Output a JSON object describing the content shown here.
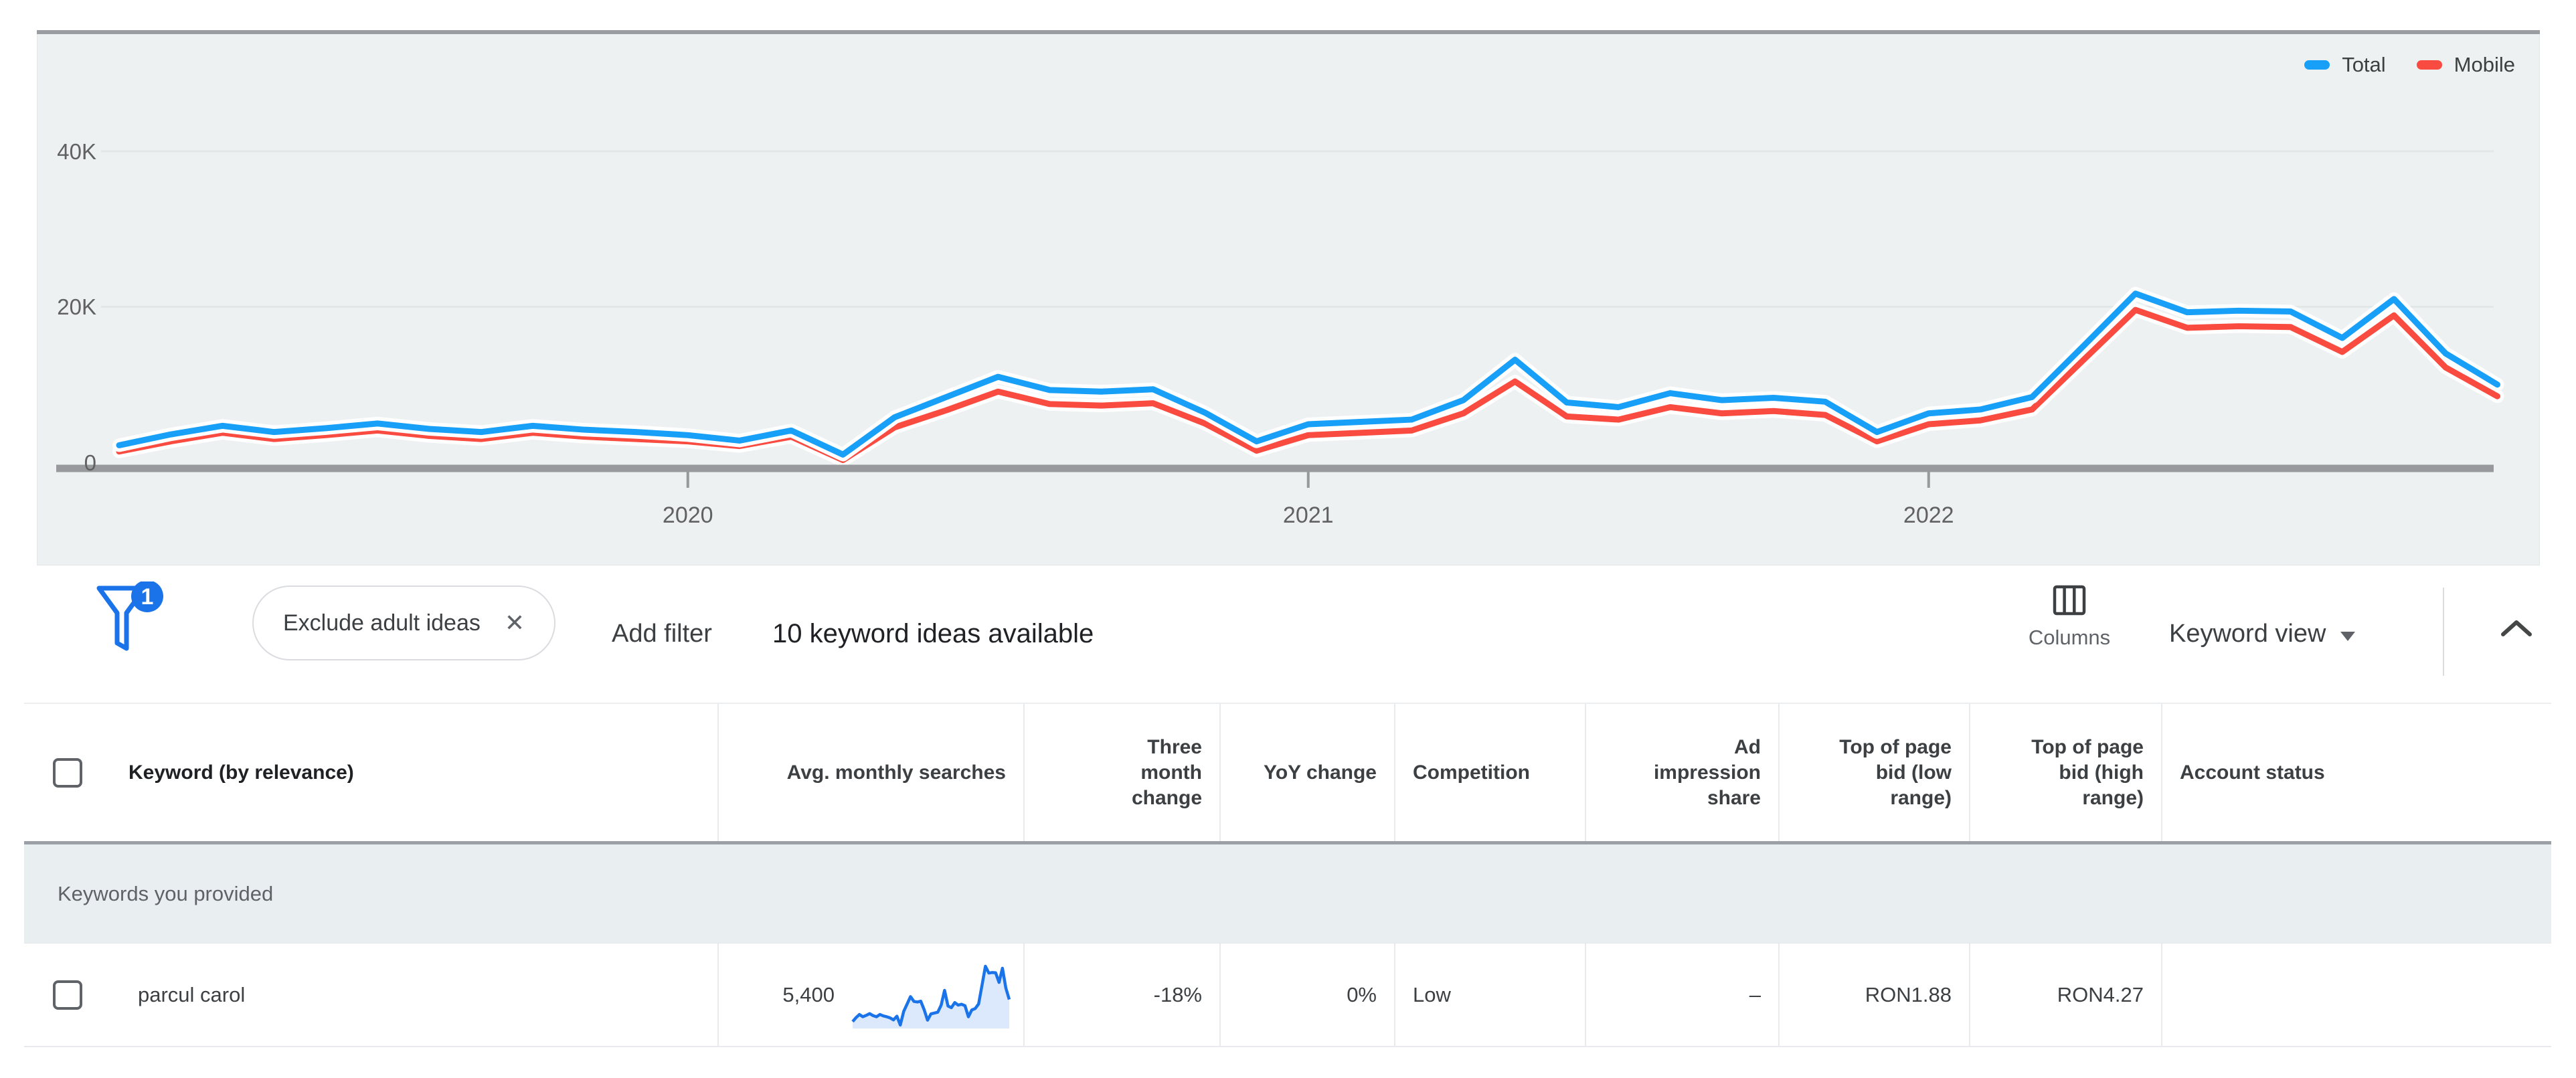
{
  "chart_data": {
    "type": "line",
    "x_unit": "month",
    "x_range_start": "Feb 2019",
    "x_range_end": "Dec 2022",
    "x_axis_tick_labels": [
      "2020",
      "2021",
      "2022"
    ],
    "y_axis_tick_labels": [
      "40K",
      "20K",
      "0"
    ],
    "ylim_k": [
      0,
      45
    ],
    "grid": true,
    "legend_position": "top-right",
    "series": [
      {
        "name": "Total",
        "color": "#18a0f8",
        "values_k": [
          2.2,
          3.6,
          4.7,
          3.9,
          4.4,
          5.0,
          4.3,
          3.9,
          4.7,
          4.2,
          3.9,
          3.5,
          2.8,
          4.1,
          1.0,
          5.8,
          8.4,
          11.0,
          9.3,
          9.1,
          9.4,
          6.4,
          2.7,
          4.9,
          5.2,
          5.5,
          8.0,
          13.2,
          7.7,
          7.1,
          8.9,
          8.0,
          8.3,
          7.8,
          3.9,
          6.3,
          6.8,
          8.4,
          15.0,
          21.7,
          19.3,
          19.5,
          19.4,
          16.0,
          21.0,
          14.0,
          10.0
        ]
      },
      {
        "name": "Mobile",
        "color": "#f94b3f",
        "values_k": [
          1.4,
          2.7,
          3.8,
          3.0,
          3.5,
          4.1,
          3.4,
          3.0,
          3.8,
          3.3,
          3.0,
          2.7,
          2.1,
          3.3,
          0.3,
          4.5,
          6.7,
          9.1,
          7.5,
          7.3,
          7.6,
          5.0,
          1.5,
          3.5,
          3.8,
          4.1,
          6.3,
          10.4,
          5.9,
          5.5,
          7.1,
          6.3,
          6.6,
          6.1,
          2.7,
          4.9,
          5.4,
          6.8,
          13.2,
          19.6,
          17.3,
          17.5,
          17.4,
          14.2,
          18.9,
          12.2,
          8.5
        ]
      }
    ]
  },
  "filter_bar": {
    "filter_icon_badge_count": "1",
    "chip": {
      "label": "Exclude adult ideas",
      "remove_icon": "✕"
    },
    "add_filter_label": "Add filter",
    "results_summary": "10 keyword ideas available",
    "columns_button_label": "Columns",
    "view_dropdown_value": "Keyword view"
  },
  "table": {
    "headers": {
      "keyword": "Keyword (by relevance)",
      "avg_monthly_searches": "Avg. monthly searches",
      "three_month_change": "Three month change",
      "yoy_change": "YoY change",
      "competition": "Competition",
      "ad_impression_share": "Ad impression share",
      "top_of_page_bid_low": "Top of page bid (low range)",
      "top_of_page_bid_high": "Top of page bid (high range)",
      "account_status": "Account status"
    },
    "section_label": "Keywords you provided",
    "rows": [
      {
        "keyword": "parcul carol",
        "avg_monthly_searches": "5,400",
        "three_month_change": "-18%",
        "yoy_change": "0%",
        "competition": "Low",
        "ad_impression_share": "–",
        "top_of_page_bid_low": "RON1.88",
        "top_of_page_bid_high": "RON4.27",
        "account_status": "",
        "sparkline_values_k": [
          2.2,
          3.6,
          4.7,
          3.9,
          4.4,
          5.0,
          4.3,
          3.9,
          4.7,
          4.2,
          3.9,
          3.5,
          2.8,
          4.1,
          1.0,
          5.8,
          8.4,
          11.0,
          9.3,
          9.1,
          9.4,
          6.4,
          2.7,
          4.9,
          5.2,
          5.5,
          8.0,
          13.2,
          7.7,
          7.1,
          8.9,
          8.0,
          8.3,
          7.8,
          3.9,
          6.3,
          6.8,
          8.4,
          15.0,
          21.7,
          19.3,
          19.5,
          19.4,
          16.0,
          21.0,
          14.0,
          10.0
        ]
      }
    ]
  },
  "colors": {
    "accent_blue": "#1a73e8",
    "chart_panel_bg": "#eef1f2",
    "section_row_bg": "#e9eef0",
    "axis_gray": "#97999c",
    "sparkline_line": "#1a73e8",
    "sparkline_fill": "#dce8fb",
    "line_halo": "#ffffff"
  }
}
